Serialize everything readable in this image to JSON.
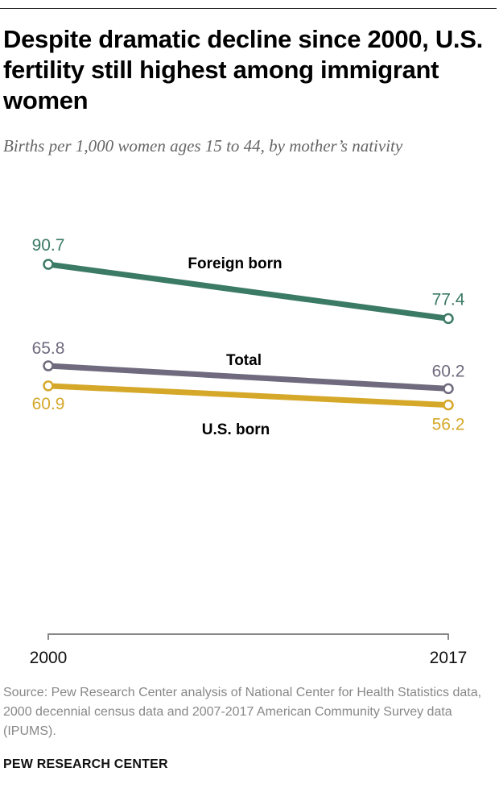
{
  "title": "Despite dramatic decline since 2000, U.S. fertility still highest among immigrant women",
  "subtitle": "Births per 1,000 women ages 15 to 44, by mother’s nativity",
  "source": "Source: Pew Research Center analysis of National Center for Health Statistics data, 2000 decennial census data and 2007-2017 American Community Survey data (IPUMS).",
  "brand": "PEW RESEARCH CENTER",
  "chart_data": {
    "type": "line",
    "title": "Despite dramatic decline since 2000, U.S. fertility still highest among immigrant women",
    "subtitle": "Births per 1,000 women ages 15 to 44, by mother’s nativity",
    "x": [
      "2000",
      "2017"
    ],
    "ylim": [
      0,
      95
    ],
    "grid": false,
    "legend": "inline labels",
    "series": [
      {
        "name": "Foreign born",
        "values": [
          90.7,
          77.4
        ],
        "labels": [
          "90.7",
          "77.4"
        ],
        "color": "#3b7a65"
      },
      {
        "name": "Total",
        "values": [
          65.8,
          60.2
        ],
        "labels": [
          "65.8",
          "60.2"
        ],
        "color": "#6f6a7d"
      },
      {
        "name": "U.S. born",
        "values": [
          60.9,
          56.2
        ],
        "labels": [
          "60.9",
          "56.2"
        ],
        "color": "#d5a82a"
      }
    ]
  }
}
